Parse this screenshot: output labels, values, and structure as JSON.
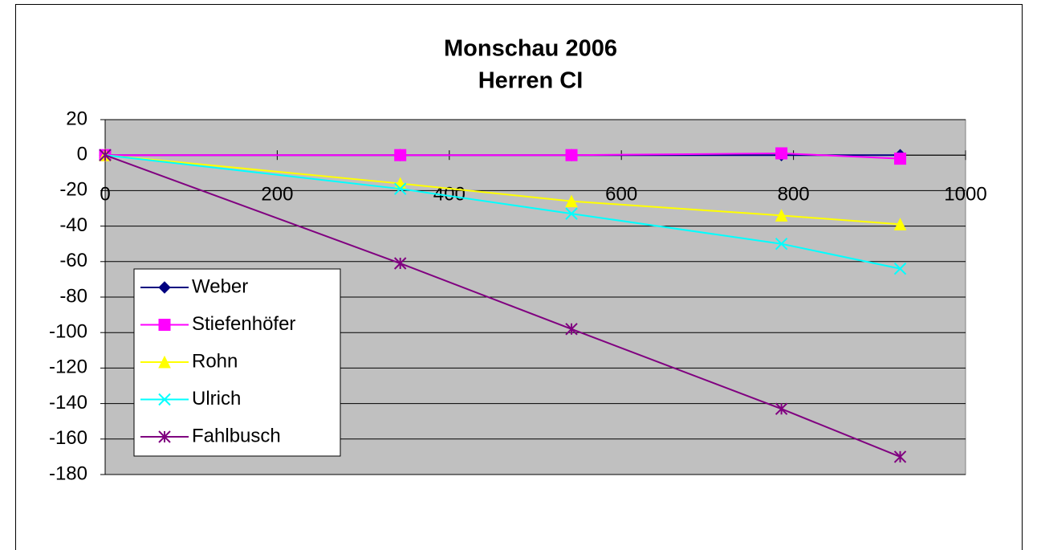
{
  "chart_data": {
    "type": "scatter-line",
    "title": "Monschau 2006",
    "subtitle": "Herren CI",
    "x": [
      0,
      343,
      542,
      786,
      924
    ],
    "series": [
      {
        "name": "Weber",
        "color": "#000080",
        "marker": "diamond",
        "values": [
          0,
          0,
          0,
          0,
          0
        ]
      },
      {
        "name": "Stiefenhöfer",
        "color": "#ff00ff",
        "marker": "square",
        "values": [
          0,
          0,
          0,
          1,
          -2
        ]
      },
      {
        "name": "Rohn",
        "color": "#ffff00",
        "marker": "triangle",
        "values": [
          0,
          -16,
          -26,
          -34,
          -39
        ]
      },
      {
        "name": "Ulrich",
        "color": "#00ffff",
        "marker": "x",
        "values": [
          0,
          -19,
          -33,
          -50,
          -64
        ]
      },
      {
        "name": "Fahlbusch",
        "color": "#800080",
        "marker": "star",
        "values": [
          0,
          -61,
          -98,
          -143,
          -170
        ]
      }
    ],
    "xlim": [
      0,
      1000
    ],
    "xticks": [
      0,
      200,
      400,
      600,
      800,
      1000
    ],
    "ylim": [
      -180,
      20
    ],
    "yticks": [
      20,
      0,
      -20,
      -40,
      -60,
      -80,
      -100,
      -120,
      -140,
      -160,
      -180
    ],
    "grid": true,
    "legend": "lower left",
    "plot_background": "#c0c0c0"
  }
}
